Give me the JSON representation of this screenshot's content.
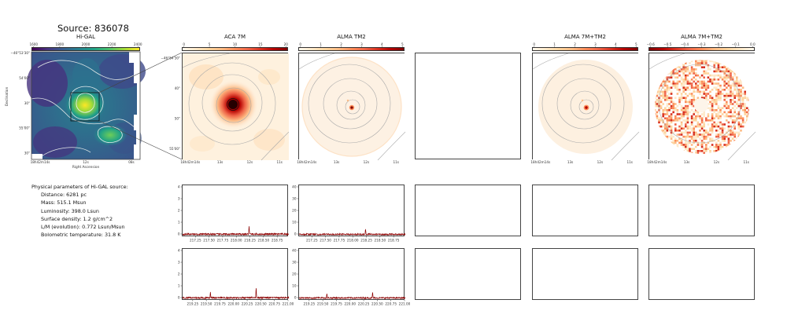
{
  "page": {
    "title": "Source: 836078"
  },
  "panels": {
    "higal": {
      "title": "Hi-GAL",
      "xlabel": "Right Ascension",
      "ylabel": "Declination"
    },
    "aca7m": {
      "title": "ACA 7M"
    },
    "almatm2": {
      "title": "ALMA TM2"
    },
    "combined": {
      "title": "ALMA 7M+TM2"
    },
    "combined_diff": {
      "title": "ALMA 7M+TM2"
    }
  },
  "colorbars": {
    "higal": [
      "1600",
      "1800",
      "2000",
      "2200",
      "2400"
    ],
    "aca7m": [
      "0",
      "5",
      "10",
      "15",
      "20"
    ],
    "almatm2": [
      "0",
      "1",
      "2",
      "3",
      "4",
      "5"
    ],
    "combined": [
      "0",
      "1",
      "2",
      "3",
      "4",
      "5"
    ],
    "combined_diff": [
      "−0.6",
      "−0.5",
      "−0.4",
      "−0.3",
      "−0.2",
      "−0.1",
      "0.0"
    ]
  },
  "axes": {
    "higal": {
      "y_ticks": [
        "−46°53'30\"",
        "54'00\"",
        "30\"",
        "55'00\"",
        "30\""
      ],
      "x_ticks": [
        "18h42m14s",
        "12s",
        "08s"
      ]
    },
    "zoom": {
      "y_ticks": [
        "−46°54'30\"",
        "40\"",
        "50\"",
        "55'00\""
      ],
      "x_ticks": [
        "18h42m14s",
        "13s",
        "12s",
        "11s"
      ]
    }
  },
  "params": {
    "heading": "Physical parameters of Hi-GAL source:",
    "lines": [
      "Distance: 6281 pc",
      "Mass: 515.1 Msun",
      "Luminosity: 398.0 Lsun",
      "Surface density: 1.2 g/cm^2",
      "L/M (evolution): 0.772 Lsun/Msun",
      "Bolometric temperature: 31.8 K"
    ]
  },
  "chart_data": [
    {
      "type": "line",
      "panel": "ACA 7M spectrum, band 1",
      "x_ticks": [
        "217.25",
        "217.50",
        "217.75",
        "218.00",
        "218.25",
        "218.50",
        "218.75"
      ],
      "xlim": [
        217.0,
        218.95
      ],
      "y_ticks": [
        "0",
        "1",
        "2",
        "3",
        "4"
      ],
      "ylim": [
        -0.2,
        4.2
      ],
      "baseline": 0.05,
      "noise": 0.07,
      "peaks": [
        {
          "x": 218.22,
          "y": 0.75
        }
      ]
    },
    {
      "type": "line",
      "panel": "ALMA TM2 spectrum, band 1",
      "x_ticks": [
        "217.25",
        "217.50",
        "217.75",
        "218.00",
        "218.25",
        "218.50",
        "218.75"
      ],
      "xlim": [
        217.0,
        218.95
      ],
      "y_ticks": [
        "0",
        "10",
        "20",
        "30",
        "40"
      ],
      "ylim": [
        -2,
        42
      ],
      "baseline": 0.4,
      "noise": 0.6,
      "peaks": [
        {
          "x": 218.22,
          "y": 5
        }
      ]
    },
    {
      "type": "line",
      "panel": "ACA 7M spectrum, band 2",
      "x_ticks": [
        "219.25",
        "219.50",
        "219.75",
        "220.00",
        "220.25",
        "220.50",
        "220.75",
        "221.00"
      ],
      "xlim": [
        219.05,
        221.0
      ],
      "y_ticks": [
        "0",
        "1",
        "2",
        "3",
        "4"
      ],
      "ylim": [
        -0.2,
        4.2
      ],
      "baseline": 0.05,
      "noise": 0.07,
      "peaks": [
        {
          "x": 219.56,
          "y": 0.5
        },
        {
          "x": 220.4,
          "y": 0.9
        }
      ]
    },
    {
      "type": "line",
      "panel": "ALMA TM2 spectrum, band 2",
      "x_ticks": [
        "219.25",
        "219.50",
        "219.75",
        "220.00",
        "220.25",
        "220.50",
        "220.75",
        "221.00"
      ],
      "xlim": [
        219.05,
        221.0
      ],
      "y_ticks": [
        "0",
        "10",
        "20",
        "30",
        "40"
      ],
      "ylim": [
        -2,
        42
      ],
      "baseline": 0.4,
      "noise": 0.6,
      "peaks": [
        {
          "x": 219.56,
          "y": 4
        },
        {
          "x": 220.4,
          "y": 5
        }
      ]
    }
  ],
  "colors": {
    "viridis": [
      "#440154",
      "#46327e",
      "#365c8d",
      "#277f8e",
      "#1fa187",
      "#4ac16d",
      "#a0da39",
      "#fde725"
    ],
    "orrd": [
      "#fff7ec",
      "#fee8c8",
      "#fdd49e",
      "#fdbb84",
      "#fc8d59",
      "#ef6548",
      "#d7301f",
      "#b30000",
      "#7f0000"
    ],
    "orrd_rev": [
      "#7f0000",
      "#b30000",
      "#d7301f",
      "#ef6548",
      "#fc8d59",
      "#fdbb84",
      "#fdd49e",
      "#fee8c8",
      "#fff7ec"
    ],
    "spectrum": "#8b0000"
  }
}
